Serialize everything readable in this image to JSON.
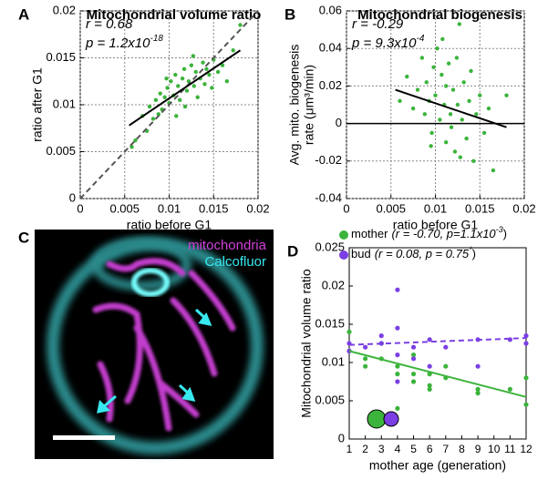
{
  "chart_data": [
    {
      "type": "scatter",
      "panel_label": "A",
      "title": "Mitochondrial volume ratio",
      "xlabel": "ratio before G1",
      "ylabel": [
        "ratio after G1"
      ],
      "xlim": [
        0,
        0.02
      ],
      "ylim": [
        0,
        0.02
      ],
      "xticks": [
        0,
        0.005,
        0.01,
        0.015,
        0.02
      ],
      "yticks": [
        0,
        0.005,
        0.01,
        0.015,
        0.02
      ],
      "grid": true,
      "annotations": [
        {
          "text": "r = 0.68"
        },
        {
          "text": "p = 1.2x10",
          "sup": "-18"
        }
      ],
      "series": [
        {
          "color": "#3cb43c",
          "x": [
            0.0058,
            0.0062,
            0.007,
            0.0075,
            0.0078,
            0.0082,
            0.0085,
            0.0088,
            0.009,
            0.0092,
            0.0095,
            0.0098,
            0.01,
            0.0102,
            0.0105,
            0.0107,
            0.011,
            0.0112,
            0.0115,
            0.0117,
            0.012,
            0.0122,
            0.0125,
            0.0128,
            0.013,
            0.0132,
            0.0135,
            0.0138,
            0.014,
            0.0142,
            0.0145,
            0.0148,
            0.015,
            0.0155,
            0.016,
            0.0165,
            0.0172,
            0.018,
            0.0108,
            0.0118,
            0.0127,
            0.0097
          ],
          "values": [
            0.0055,
            0.0062,
            0.0088,
            0.0072,
            0.0098,
            0.0085,
            0.0105,
            0.009,
            0.0112,
            0.0095,
            0.0108,
            0.0118,
            0.0102,
            0.0125,
            0.011,
            0.0132,
            0.012,
            0.0105,
            0.0128,
            0.0138,
            0.0115,
            0.0125,
            0.0142,
            0.012,
            0.0135,
            0.0108,
            0.0128,
            0.0145,
            0.0122,
            0.0138,
            0.0132,
            0.0118,
            0.0148,
            0.0135,
            0.0142,
            0.0125,
            0.0158,
            0.0185,
            0.0088,
            0.0098,
            0.0152,
            0.0128
          ]
        }
      ],
      "lines": [
        {
          "x": [
            0,
            0.02
          ],
          "values": [
            0,
            0.02
          ],
          "color": "#555555",
          "dashed": true
        },
        {
          "x": [
            0.0055,
            0.018
          ],
          "values": [
            0.0078,
            0.0158
          ],
          "color": "#000000",
          "dashed": false
        }
      ]
    },
    {
      "type": "scatter",
      "panel_label": "B",
      "title": "Mitochondrial biogenesis",
      "xlabel": "ratio before G1",
      "ylabel": [
        "Avg. mito. biogenesis",
        "rate (μm³/min)"
      ],
      "xlim": [
        0,
        0.02
      ],
      "ylim": [
        -0.04,
        0.06
      ],
      "xticks": [
        0,
        0.005,
        0.01,
        0.015,
        0.02
      ],
      "yticks": [
        -0.04,
        -0.02,
        0,
        0.02,
        0.04,
        0.06
      ],
      "grid": true,
      "annotations": [
        {
          "text": "r = -0.29"
        },
        {
          "text": "p = 9.3x10",
          "sup": "-4"
        }
      ],
      "series": [
        {
          "color": "#3cb43c",
          "x": [
            0.006,
            0.0068,
            0.0075,
            0.008,
            0.0085,
            0.0088,
            0.009,
            0.0093,
            0.0096,
            0.0098,
            0.01,
            0.0102,
            0.0105,
            0.0107,
            0.011,
            0.0112,
            0.0115,
            0.0117,
            0.012,
            0.0122,
            0.0125,
            0.0127,
            0.013,
            0.0132,
            0.0135,
            0.0138,
            0.014,
            0.0143,
            0.0146,
            0.015,
            0.0155,
            0.016,
            0.0165,
            0.018,
            0.0108,
            0.0118,
            0.0124,
            0.0095,
            0.0128,
            0.0112
          ],
          "values": [
            0.012,
            0.025,
            0.008,
            0.018,
            0.035,
            0.005,
            0.022,
            0.012,
            -0.005,
            0.03,
            0.015,
            0.04,
            0.002,
            0.026,
            0.01,
            -0.01,
            0.032,
            0.005,
            0.018,
            -0.015,
            0.01,
            0.053,
            0.002,
            0.022,
            -0.008,
            0.012,
            0.028,
            -0.02,
            0.005,
            0.015,
            -0.005,
            0.008,
            -0.025,
            0.015,
            0.045,
            -0.002,
            0.035,
            -0.012,
            -0.018,
            0.02
          ]
        }
      ],
      "lines": [
        {
          "x": [
            0.0055,
            0.018
          ],
          "values": [
            0.018,
            -0.002
          ],
          "color": "#000000",
          "dashed": false
        }
      ]
    },
    {
      "type": "scatter",
      "panel_label": "D",
      "xlabel": "mother age (generation)",
      "ylabel": [
        "Mitochondrial volume ratio"
      ],
      "xlim": [
        1,
        12
      ],
      "ylim": [
        0,
        0.025
      ],
      "xticks": [
        1,
        2,
        3,
        4,
        5,
        6,
        7,
        8,
        9,
        10,
        11,
        12
      ],
      "yticks": [
        0,
        0.005,
        0.01,
        0.015,
        0.02,
        0.025
      ],
      "grid": false,
      "series": [
        {
          "name": "mother",
          "legend_note": [
            "(r = -0.70, p=1.1x10",
            "-3",
            ")"
          ],
          "color": "#3cb43c",
          "x": [
            1,
            1,
            2,
            2,
            3,
            3,
            4,
            4,
            4,
            5,
            5,
            5,
            6,
            6,
            6,
            7,
            7,
            9,
            9,
            11,
            12,
            12
          ],
          "values": [
            0.0115,
            0.014,
            0.0105,
            0.0095,
            0.0105,
            0.0125,
            0.0085,
            0.004,
            0.0095,
            0.0085,
            0.0075,
            0.011,
            0.0085,
            0.0065,
            0.007,
            0.0095,
            0.008,
            0.0065,
            0.006,
            0.0065,
            0.008,
            0.0045
          ]
        },
        {
          "name": "bud",
          "legend_note": [
            "(r = 0.08, p = 0.75",
            "*",
            ")"
          ],
          "color": "#7b3fe4",
          "x": [
            1,
            1,
            2,
            3,
            3,
            4,
            4,
            4,
            4,
            5,
            5,
            6,
            6,
            7,
            9,
            9,
            11,
            12,
            12
          ],
          "values": [
            0.0125,
            0.0115,
            0.012,
            0.0135,
            0.0125,
            0.0195,
            0.0145,
            0.0075,
            0.011,
            0.012,
            0.0105,
            0.013,
            0.0095,
            0.012,
            0.013,
            0.0095,
            0.013,
            0.0135,
            0.0125
          ]
        }
      ],
      "lines": [
        {
          "x": [
            1,
            12
          ],
          "values": [
            0.0115,
            0.0055
          ],
          "color": "#3cb43c",
          "dashed": false
        },
        {
          "x": [
            1,
            12
          ],
          "values": [
            0.0123,
            0.0132
          ],
          "color": "#7b3fe4",
          "dashed": true
        }
      ]
    }
  ],
  "image_panel": {
    "panel_label": "C",
    "legend": [
      "mitochondria",
      "Calcofluor"
    ]
  }
}
